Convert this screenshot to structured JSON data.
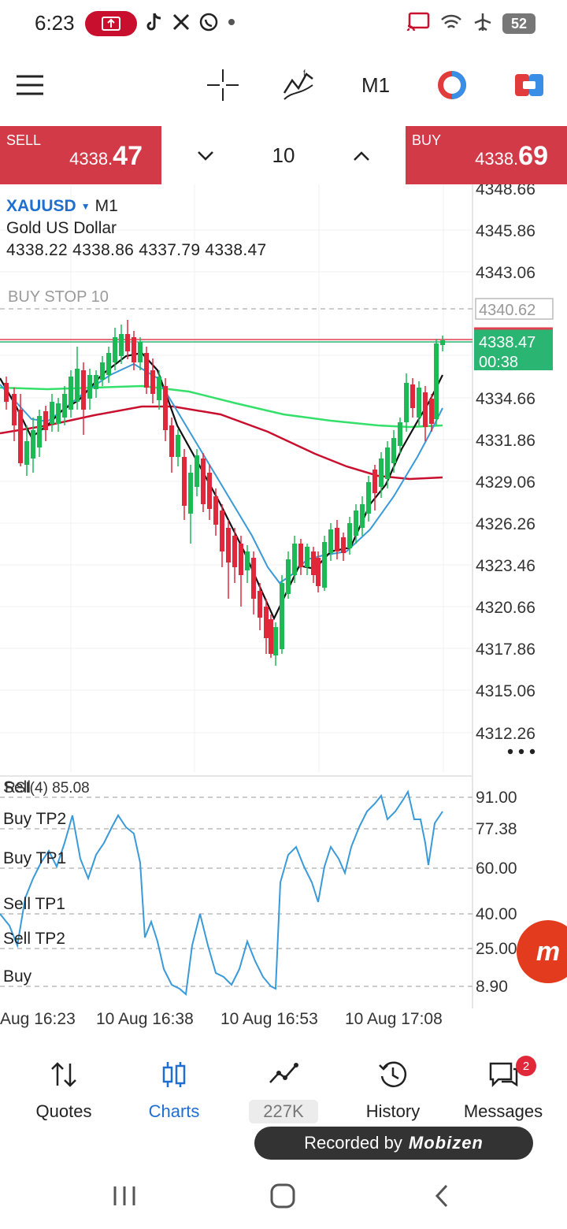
{
  "status_bar": {
    "time": "6:23",
    "battery": "52"
  },
  "toolbar": {
    "timeframe": "M1"
  },
  "trade": {
    "sell_label": "SELL",
    "sell_price_main": "4338.",
    "sell_price_big": "47",
    "buy_label": "BUY",
    "buy_price_main": "4338.",
    "buy_price_big": "69",
    "volume": "10"
  },
  "chart_info": {
    "symbol": "XAUUSD",
    "timeframe": "M1",
    "description": "Gold US Dollar",
    "ohlc": "4338.22 4338.86 4337.79 4338.47",
    "pending_order": "BUY STOP 10",
    "pending_price": "4340.62",
    "current_price": "4338.47",
    "countdown": "00:38"
  },
  "price_axis": [
    "4348.66",
    "4345.86",
    "4343.06",
    "4334.66",
    "4331.86",
    "4329.06",
    "4326.26",
    "4323.46",
    "4320.66",
    "4317.86",
    "4315.06",
    "4312.26"
  ],
  "rsi": {
    "title": "RSI(4) 85.08",
    "overlay_label": "Sell",
    "levels": [
      {
        "label": "Buy TP2",
        "value": "77.38"
      },
      {
        "label": "Buy TP1",
        "value": "60.00"
      },
      {
        "label": "Sell TP1",
        "value": "40.00"
      },
      {
        "label": "Sell TP2",
        "value": "25.00"
      },
      {
        "label": "Buy",
        "value": "8.90"
      }
    ],
    "top_value": "91.00"
  },
  "time_axis": [
    "Aug 16:23",
    "10 Aug 16:38",
    "10 Aug 16:53",
    "10 Aug 17:08"
  ],
  "nav": {
    "quotes": "Quotes",
    "charts": "Charts",
    "counter": "227K",
    "history": "History",
    "messages": "Messages",
    "messages_badge": "2"
  },
  "recording": {
    "prefix": "Recorded by",
    "brand": "Mobizen"
  },
  "colors": {
    "trade_red": "#d23a48",
    "accent_blue": "#1e6fd0",
    "bull": "#1db954",
    "bear": "#e0283a",
    "ma_fast": "#111111",
    "ma_mid": "#3a9ad9",
    "ma_green": "#35e06a",
    "ma_red": "#c8102e"
  }
}
